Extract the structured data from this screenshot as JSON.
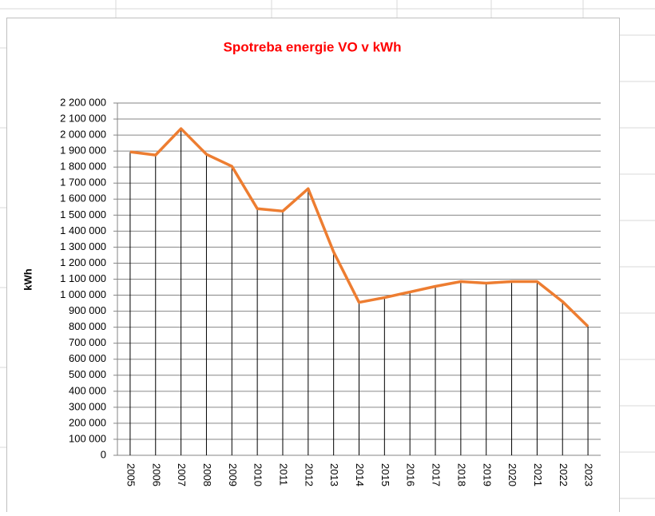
{
  "chart_data": {
    "type": "line",
    "title": "Spotreba energie VO v kWh",
    "y_label": "kWh",
    "categories": [
      "2005",
      "2006",
      "2007",
      "2008",
      "2009",
      "2010",
      "2011",
      "2012",
      "2013",
      "2014",
      "2015",
      "2016",
      "2017",
      "2018",
      "2019",
      "2020",
      "2021",
      "2022",
      "2023"
    ],
    "series": [
      {
        "name": "kWh",
        "color": "#ed7d31",
        "values": [
          1895000,
          1875000,
          2040000,
          1880000,
          1805000,
          1540000,
          1525000,
          1665000,
          1270000,
          955000,
          985000,
          1020000,
          1055000,
          1085000,
          1075000,
          1085000,
          1085000,
          960000,
          805000
        ]
      }
    ],
    "ylim": [
      0,
      2200000
    ],
    "yticks": [
      0,
      {
        "value": 100000,
        "label": "100 000"
      },
      {
        "value": 200000,
        "label": "200 000"
      },
      {
        "value": 300000,
        "label": "300 000"
      },
      {
        "value": 400000,
        "label": "400 000"
      },
      {
        "value": 500000,
        "label": "500 000"
      },
      {
        "value": 600000,
        "label": "600 000"
      },
      {
        "value": 700000,
        "label": "700 000"
      },
      {
        "value": 800000,
        "label": "800 000"
      },
      {
        "value": 900000,
        "label": "900 000"
      },
      {
        "value": 1000000,
        "label": "1 000 000"
      },
      {
        "value": 1100000,
        "label": "1 100 000"
      },
      {
        "value": 1200000,
        "label": "1 200 000"
      },
      {
        "value": 1300000,
        "label": "1 300 000"
      },
      {
        "value": 1400000,
        "label": "1 400 000"
      },
      {
        "value": 1500000,
        "label": "1 500 000"
      },
      {
        "value": 1600000,
        "label": "1 600 000"
      },
      {
        "value": 1700000,
        "label": "1 700 000"
      },
      {
        "value": 1800000,
        "label": "1 800 000"
      },
      {
        "value": 1900000,
        "label": "1 900 000"
      },
      {
        "value": 2000000,
        "label": "2 000 000"
      },
      {
        "value": 2100000,
        "label": "2 100 000"
      },
      {
        "value": 2200000,
        "label": "2 200 000"
      }
    ],
    "grid": true,
    "drop_lines": true
  }
}
